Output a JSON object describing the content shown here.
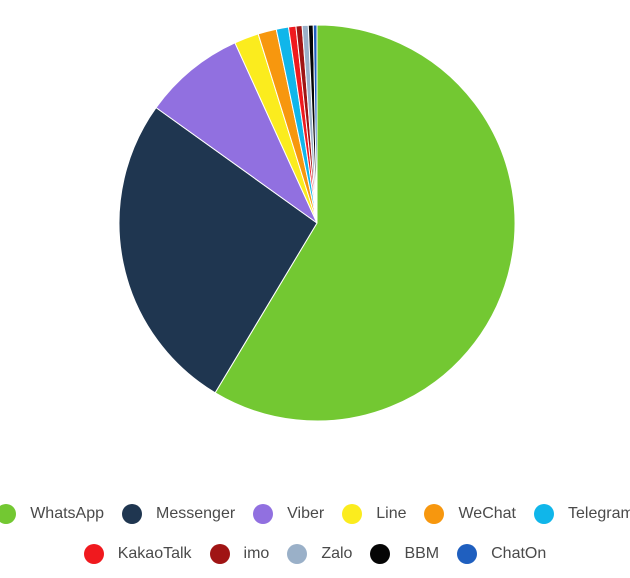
{
  "chart_data": {
    "type": "pie",
    "title": "",
    "slices": [
      {
        "name": "WhatsApp",
        "value": 58.6,
        "color": "#73c832"
      },
      {
        "name": "Messenger",
        "value": 26.3,
        "color": "#1f3650"
      },
      {
        "name": "Viber",
        "value": 8.3,
        "color": "#9170e0"
      },
      {
        "name": "Line",
        "value": 2.0,
        "color": "#fbec1e"
      },
      {
        "name": "WeChat",
        "value": 1.5,
        "color": "#f7970e"
      },
      {
        "name": "Telegram",
        "value": 1.0,
        "color": "#10b6ea"
      },
      {
        "name": "KakaoTalk",
        "value": 0.6,
        "color": "#f0191e"
      },
      {
        "name": "imo",
        "value": 0.5,
        "color": "#a01414"
      },
      {
        "name": "Zalo",
        "value": 0.5,
        "color": "#9ab0c8"
      },
      {
        "name": "BBM",
        "value": 0.4,
        "color": "#050505"
      },
      {
        "name": "ChatOn",
        "value": 0.3,
        "color": "#1f5fbf"
      }
    ],
    "legend": {
      "placement": "bottom",
      "rows": [
        [
          0,
          1,
          2,
          3,
          4,
          5
        ],
        [
          6,
          7,
          8,
          9,
          10
        ]
      ]
    }
  }
}
